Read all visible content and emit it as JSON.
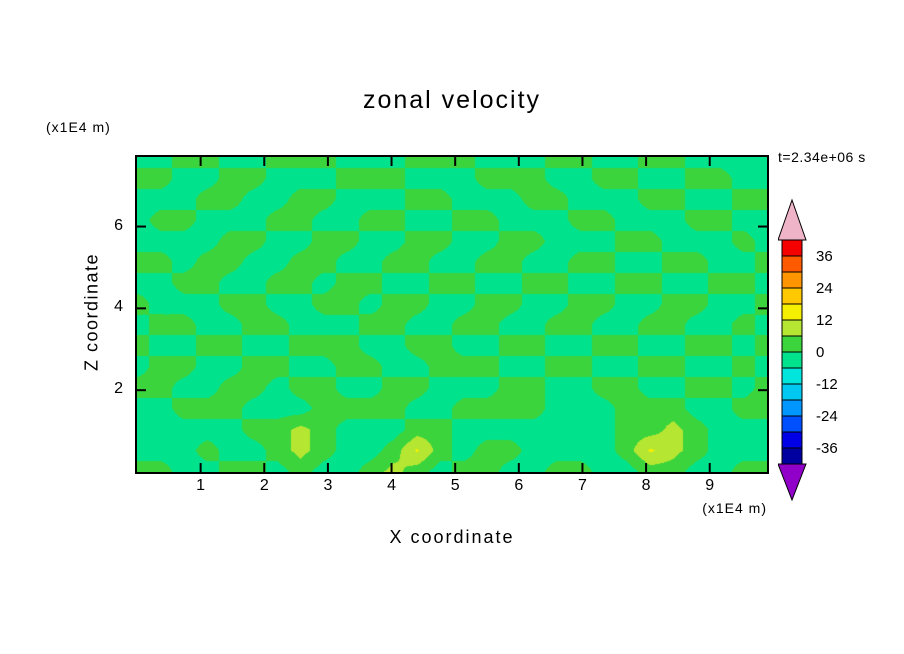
{
  "figure": {
    "title": "zonal velocity",
    "time_annotation": "t=2.34e+06 s"
  },
  "axes": {
    "x": {
      "label": "X coordinate",
      "unit": "(x1E4 m)",
      "min": 0,
      "max": 9.9,
      "ticks": [
        1,
        2,
        3,
        4,
        5,
        6,
        7,
        8,
        9
      ]
    },
    "z": {
      "label": "Z coordinate",
      "unit": "(x1E4 m)",
      "min": 0,
      "max": 7.7,
      "ticks": [
        2,
        4,
        6
      ]
    }
  },
  "chart_data": {
    "type": "heatmap",
    "subtype": "filled-contour",
    "title": "zonal velocity",
    "xlabel": "X coordinate",
    "ylabel": "Z coordinate",
    "x_range": [
      0,
      9.9
    ],
    "z_range": [
      0,
      7.7
    ],
    "levels": [
      -42,
      -36,
      -30,
      -24,
      -18,
      -12,
      -6,
      0,
      6,
      12,
      18,
      24,
      30,
      36,
      42
    ],
    "colors": [
      "#9000C8",
      "#0000A0",
      "#0000E6",
      "#0050FF",
      "#0096FF",
      "#00C8F0",
      "#00E6DC",
      "#00E28C",
      "#3CD43C",
      "#B4E632",
      "#F5F000",
      "#FFC800",
      "#FF9600",
      "#FF5A00",
      "#F50000",
      "#F0B4C8"
    ],
    "colorbar": {
      "orientation": "vertical",
      "position": "right",
      "labels": [
        "36",
        "24",
        "12",
        "0",
        "-12",
        "-24",
        "-36"
      ]
    },
    "grid": {
      "description": "Approximate zonal velocity field values on a coarse grid; rows top (z=7.7) to bottom (z=0), columns left (x=0) to right (x=9.9). Field is mostly between -6 and 6 with weak positive streaks and small patches of 6-18 near the bottom.",
      "values": [
        [
          -3,
          -3,
          3,
          3,
          -3,
          -3,
          3,
          3,
          3,
          -3,
          -3,
          -3,
          3,
          3,
          3,
          -3,
          -3,
          -3,
          3,
          3,
          -3,
          -3,
          3,
          3,
          -3,
          -3,
          -3,
          -3
        ],
        [
          3,
          3,
          -3,
          -3,
          3,
          3,
          -3,
          -3,
          -3,
          3,
          3,
          3,
          -3,
          -3,
          -3,
          3,
          3,
          3,
          -3,
          -3,
          3,
          3,
          -3,
          -3,
          3,
          3,
          -3,
          -3
        ],
        [
          -3,
          -3,
          -3,
          3,
          3,
          -3,
          -3,
          3,
          3,
          -3,
          -3,
          -3,
          3,
          3,
          -3,
          -3,
          -3,
          3,
          3,
          -3,
          -3,
          -3,
          3,
          3,
          -3,
          -3,
          3,
          3
        ],
        [
          -3,
          3,
          3,
          -3,
          -3,
          -3,
          3,
          3,
          -3,
          -3,
          3,
          3,
          -3,
          -3,
          3,
          3,
          -3,
          -3,
          -3,
          3,
          3,
          -3,
          -3,
          -3,
          3,
          3,
          -3,
          -3
        ],
        [
          -3,
          -3,
          -3,
          -3,
          3,
          3,
          -3,
          -3,
          3,
          3,
          -3,
          -3,
          3,
          3,
          -3,
          -3,
          3,
          3,
          -3,
          -3,
          -3,
          3,
          3,
          -3,
          -3,
          -3,
          3,
          -3
        ],
        [
          3,
          3,
          -3,
          3,
          3,
          -3,
          -3,
          3,
          3,
          -3,
          -3,
          3,
          3,
          -3,
          -3,
          3,
          3,
          -3,
          -3,
          3,
          3,
          -3,
          -3,
          3,
          3,
          -3,
          -3,
          3
        ],
        [
          -3,
          -3,
          3,
          3,
          -3,
          -3,
          3,
          3,
          -3,
          3,
          3,
          -3,
          -3,
          3,
          3,
          -3,
          -3,
          3,
          3,
          -3,
          -3,
          3,
          3,
          -3,
          -3,
          3,
          3,
          -3
        ],
        [
          3,
          -3,
          -3,
          -3,
          3,
          3,
          -3,
          -3,
          3,
          3,
          -3,
          3,
          3,
          -3,
          -3,
          3,
          3,
          -3,
          -3,
          3,
          3,
          -3,
          -3,
          3,
          3,
          -3,
          -3,
          3
        ],
        [
          -3,
          3,
          3,
          -3,
          -3,
          3,
          3,
          -3,
          -3,
          -3,
          3,
          3,
          -3,
          -3,
          3,
          3,
          -3,
          -3,
          3,
          3,
          -3,
          -3,
          3,
          3,
          -3,
          -3,
          3,
          -3
        ],
        [
          3,
          -3,
          -3,
          3,
          3,
          -3,
          -3,
          3,
          3,
          3,
          -3,
          -3,
          3,
          3,
          -3,
          -3,
          3,
          3,
          -3,
          -3,
          3,
          3,
          -3,
          -3,
          3,
          3,
          -3,
          3
        ],
        [
          -3,
          3,
          3,
          -3,
          -3,
          3,
          3,
          -3,
          -3,
          3,
          3,
          -3,
          -3,
          3,
          3,
          3,
          -3,
          -3,
          3,
          3,
          -3,
          -3,
          3,
          3,
          -3,
          -3,
          3,
          -3
        ],
        [
          3,
          3,
          -3,
          -3,
          3,
          3,
          -3,
          3,
          3,
          -3,
          -3,
          3,
          3,
          -3,
          -3,
          -3,
          3,
          3,
          -3,
          -3,
          3,
          3,
          -3,
          -3,
          3,
          3,
          -3,
          3
        ],
        [
          -3,
          -3,
          3,
          3,
          3,
          -3,
          -3,
          -3,
          3,
          3,
          3,
          3,
          -3,
          -3,
          3,
          3,
          3,
          3,
          -3,
          -3,
          -3,
          3,
          3,
          3,
          -3,
          -3,
          3,
          3
        ],
        [
          -3,
          -3,
          -3,
          -3,
          -3,
          3,
          3,
          8,
          3,
          -3,
          -3,
          -3,
          3,
          3,
          -3,
          -3,
          -3,
          -3,
          -3,
          -3,
          -3,
          3,
          3,
          8,
          3,
          -3,
          -3,
          -3
        ],
        [
          -3,
          -3,
          -3,
          3,
          -3,
          -3,
          3,
          8,
          3,
          -3,
          -3,
          3,
          13,
          3,
          -3,
          3,
          3,
          -3,
          -3,
          -3,
          -3,
          3,
          13,
          8,
          3,
          -3,
          -3,
          -3
        ],
        [
          3,
          3,
          -3,
          -3,
          3,
          3,
          -3,
          3,
          -3,
          -3,
          3,
          8,
          3,
          -3,
          3,
          3,
          -3,
          -3,
          3,
          3,
          -3,
          -3,
          3,
          3,
          -3,
          -3,
          3,
          3
        ]
      ]
    }
  }
}
